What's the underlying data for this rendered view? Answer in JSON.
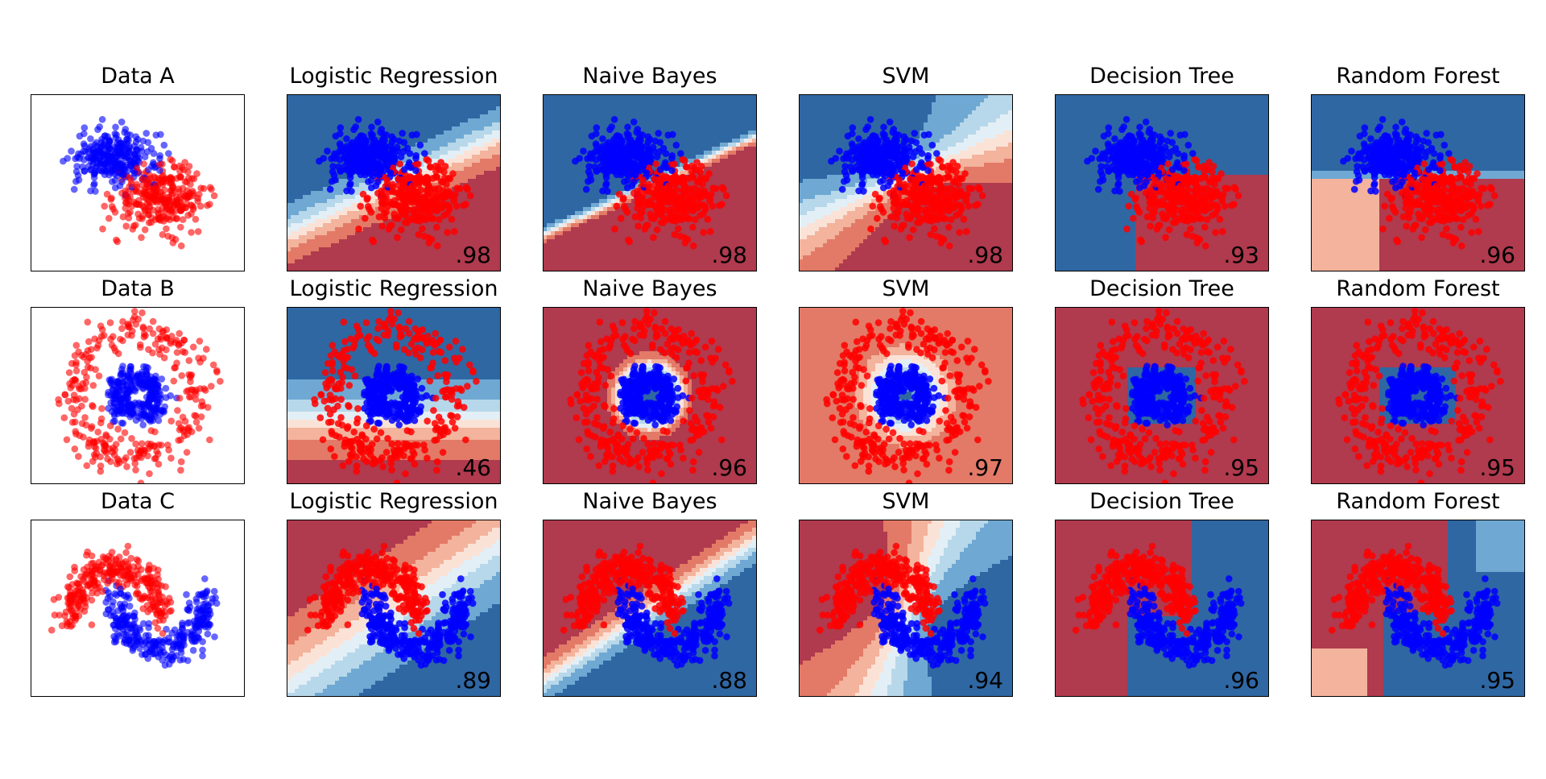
{
  "chart_data": {
    "type": "scatter",
    "title": "",
    "colors": {
      "class_0": "#0000ff",
      "class_1": "#ff0000",
      "region_blue_dark": "#2f67a3",
      "region_blue_mid": "#6fa8d3",
      "region_blue_light": "#b7d8ea",
      "region_pale_blue": "#e3eff6",
      "region_pale_red": "#fbe2d7",
      "region_red_light": "#f3b39c",
      "region_red_mid": "#e27a67",
      "region_red_dark": "#b03a4e"
    },
    "row_titles": [
      "Data A",
      "Data B",
      "Data C"
    ],
    "classifiers": [
      "Logistic Regression",
      "Naive Bayes",
      "SVM",
      "Decision Tree",
      "Random Forest"
    ],
    "scores": [
      [
        ".98",
        ".98",
        ".98",
        ".93",
        ".96"
      ],
      [
        ".46",
        ".96",
        ".97",
        ".95",
        ".95"
      ],
      [
        ".89",
        ".88",
        ".94",
        ".96",
        ".95"
      ]
    ],
    "datasets": [
      {
        "name": "Data A",
        "kind": "blobs",
        "class_0_center": [
          -1.0,
          1.0
        ],
        "class_1_center": [
          1.0,
          -0.6
        ],
        "xlim": [
          -4.5,
          4.5
        ],
        "ylim": [
          -3.5,
          3.5
        ],
        "points_per_class": 300
      },
      {
        "name": "Data B",
        "kind": "circles",
        "inner_radius": 0.3,
        "outer_radius": 1.0,
        "xlim": [
          -1.7,
          1.7
        ],
        "ylim": [
          -1.4,
          1.4
        ],
        "points_per_class": 300
      },
      {
        "name": "Data C",
        "kind": "moons",
        "xlim": [
          -1.9,
          2.9
        ],
        "ylim": [
          -1.4,
          1.9
        ],
        "points_per_class": 300
      }
    ]
  }
}
